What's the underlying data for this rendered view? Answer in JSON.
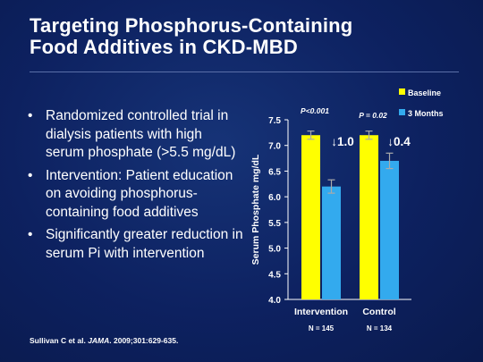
{
  "slide": {
    "title_line1": "Targeting Phosphorus-Containing",
    "title_line2": "Food Additives in CKD-MBD",
    "bullets": [
      "Randomized controlled trial in dialysis patients with high serum phosphate (>5.5 mg/dL)",
      "Intervention: Patient education on avoiding phosphorus-containing food additives",
      "Significantly greater reduction in serum Pi with intervention"
    ],
    "citation_prefix": "Sullivan C et al. ",
    "citation_journal": "JAMA",
    "citation_suffix": ". 2009;301:629-635."
  },
  "colors": {
    "baseline": "#ffff00",
    "three_months": "#33aaee",
    "background": "#0c1f55",
    "error_bar": "#aaaaaa"
  },
  "chart_data": {
    "type": "bar",
    "categories": [
      "Intervention",
      "Control"
    ],
    "category_notes": [
      "N = 145",
      "N = 134"
    ],
    "series": [
      {
        "name": "Baseline",
        "values": [
          7.2,
          7.2
        ],
        "errors": [
          0.08,
          0.08
        ]
      },
      {
        "name": "3 Months",
        "values": [
          6.2,
          6.7
        ],
        "errors": [
          0.13,
          0.15
        ]
      }
    ],
    "ylabel": "Serum Phosphate mg/dL",
    "ylim": [
      4.0,
      7.5
    ],
    "yticks": [
      "4.0",
      "4.5",
      "5.0",
      "5.5",
      "6.0",
      "6.5",
      "7.0",
      "7.5"
    ],
    "legend_position": "top-right",
    "annotations": [
      {
        "category": "Intervention",
        "pvalue": "P<0.001",
        "change": "1.0",
        "arrow": "↓"
      },
      {
        "category": "Control",
        "pvalue": "P = 0.02",
        "change": "0.4",
        "arrow": "↓"
      }
    ],
    "grid": false
  }
}
